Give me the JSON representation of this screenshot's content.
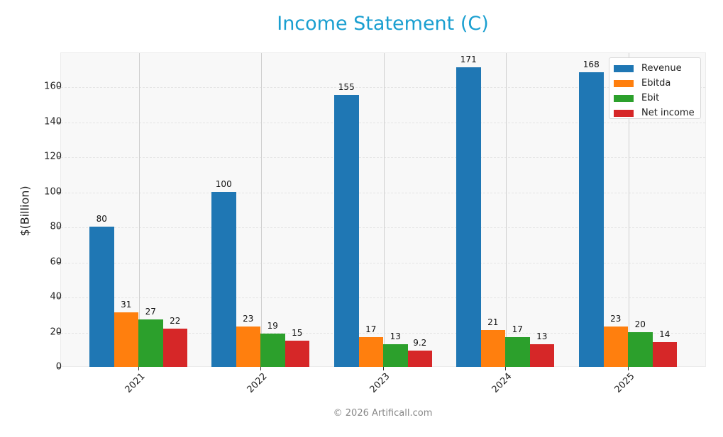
{
  "title": "Income Statement (C)",
  "footer": "© 2026 Artificall.com",
  "chart_data": {
    "type": "bar",
    "title": "Income Statement (C)",
    "xlabel": "",
    "ylabel": "$(Billion)",
    "ylim": [
      0,
      178
    ],
    "yticks": [
      0,
      20,
      40,
      60,
      80,
      100,
      120,
      140,
      160
    ],
    "categories": [
      "2021",
      "2022",
      "2023",
      "2024",
      "2025"
    ],
    "series": [
      {
        "name": "Revenue",
        "color": "#1f77b4",
        "values": [
          80,
          100,
          155,
          171,
          168
        ],
        "labels": [
          "80",
          "100",
          "155",
          "171",
          "168"
        ]
      },
      {
        "name": "Ebitda",
        "color": "#ff7f0e",
        "values": [
          31,
          23,
          17,
          21,
          23
        ],
        "labels": [
          "31",
          "23",
          "17",
          "21",
          "23"
        ]
      },
      {
        "name": "Ebit",
        "color": "#2ca02c",
        "values": [
          27,
          19,
          13,
          17,
          20
        ],
        "labels": [
          "27",
          "19",
          "13",
          "17",
          "20"
        ]
      },
      {
        "name": "Net income",
        "color": "#d62728",
        "values": [
          22,
          15,
          9.2,
          13,
          14
        ],
        "labels": [
          "22",
          "15",
          "9.2",
          "13",
          "14"
        ]
      }
    ],
    "grid": true,
    "legend_position": "upper right"
  }
}
